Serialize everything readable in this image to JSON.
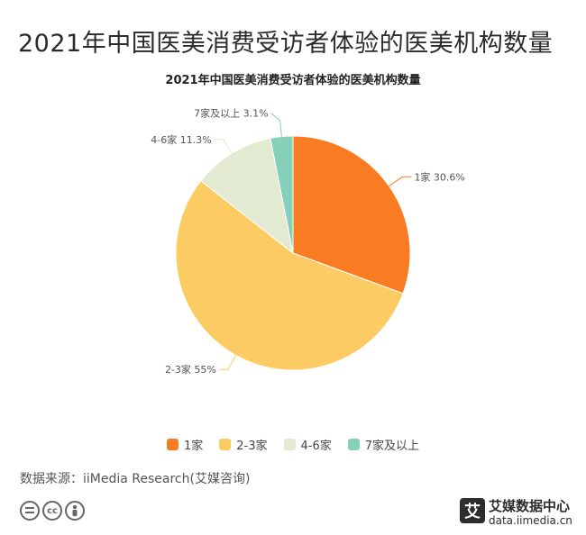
{
  "page": {
    "title": "2021年中国医美消费受访者体验的医美机构数量",
    "source": "数据来源：iiMedia Research(艾媒咨询)"
  },
  "brand": {
    "logo_char": "艾",
    "name": "艾媒数据中心",
    "url": "data.iimedia.cn"
  },
  "license_icons": [
    "equals-icon",
    "cc-icon",
    "person-icon"
  ],
  "chart_data": {
    "type": "pie",
    "title": "2021年中国医美消费受访者体验的医美机构数量",
    "categories": [
      "1家",
      "2-3家",
      "4-6家",
      "7家及以上"
    ],
    "values": [
      30.6,
      55,
      11.3,
      3.1
    ],
    "labels": [
      "1家 30.6%",
      "2-3家 55%",
      "4-6家 11.3%",
      "7家及以上 3.1%"
    ],
    "colors": [
      "#F97B22",
      "#FDCB64",
      "#E3EAD2",
      "#85D0B8"
    ],
    "legend": "bottom",
    "start_angle": "12 o'clock, clockwise"
  }
}
